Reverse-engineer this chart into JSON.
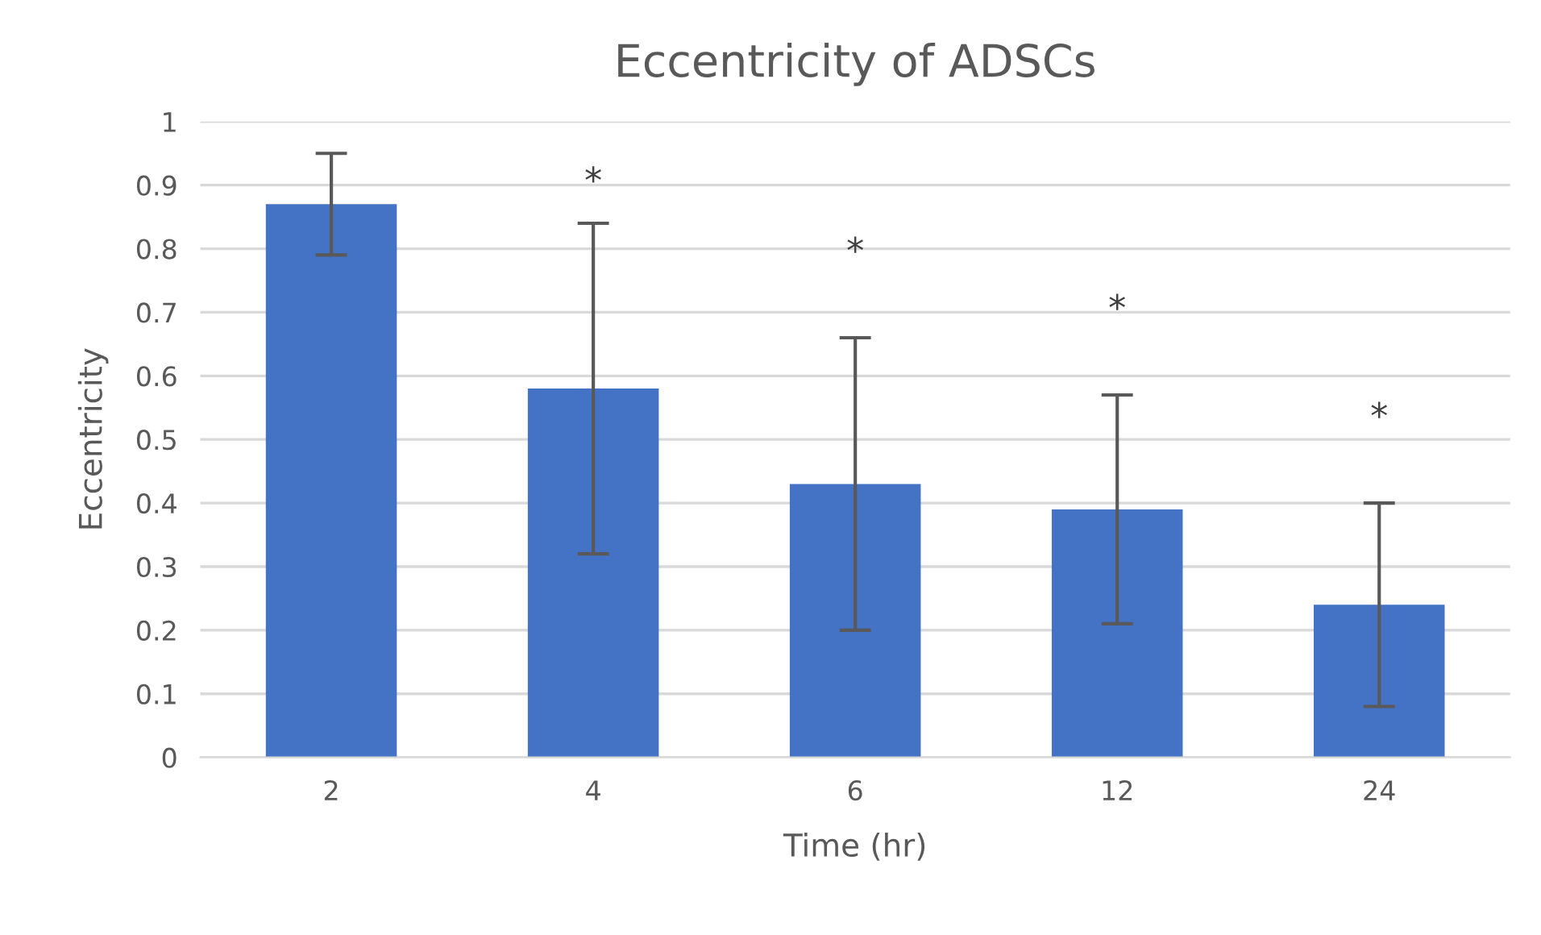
{
  "chart_data": {
    "type": "bar",
    "title": "Eccentricity of ADSCs",
    "xlabel": "Time (hr)",
    "ylabel": "Eccentricity",
    "categories": [
      "2",
      "4",
      "6",
      "12",
      "24"
    ],
    "values": [
      0.87,
      0.58,
      0.43,
      0.39,
      0.24
    ],
    "errors": [
      0.08,
      0.26,
      0.23,
      0.18,
      0.16
    ],
    "color": "#4472c4",
    "ylim": [
      0,
      1
    ],
    "yticks": [
      0,
      0.1,
      0.2,
      0.3,
      0.4,
      0.5,
      0.6,
      0.7,
      0.8,
      0.9,
      1
    ],
    "grid": "y",
    "annotations": [
      "*",
      "*",
      "*",
      "*"
    ]
  }
}
